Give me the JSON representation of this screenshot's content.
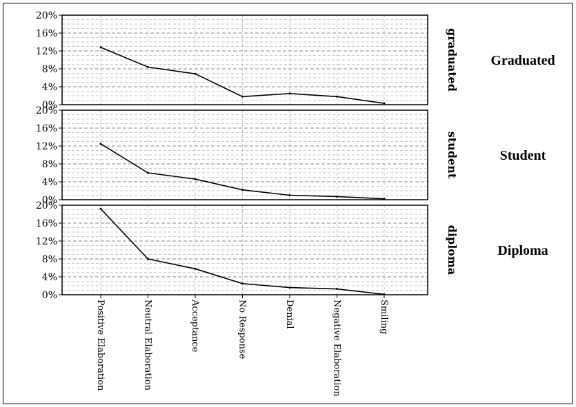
{
  "chart_data": {
    "type": "line",
    "categories": [
      "Positive Elaboration",
      "Neutral Elaboration",
      "Acceptance",
      "No Response",
      "Denial",
      "Negative Elaboration",
      "Smiling"
    ],
    "y_ticks": [
      "0%",
      "4%",
      "8%",
      "12%",
      "16%",
      "20%"
    ],
    "ylim": [
      0,
      20
    ],
    "grid": true,
    "panels": [
      {
        "strip_label": "graduated",
        "side_label": "Graduated",
        "values": [
          12.8,
          8.4,
          6.9,
          1.8,
          2.5,
          1.8,
          0.3
        ]
      },
      {
        "strip_label": "student",
        "side_label": "Student",
        "values": [
          12.5,
          6.0,
          4.6,
          2.2,
          1.0,
          0.7,
          0.2
        ]
      },
      {
        "strip_label": "diploma",
        "side_label": "Diploma",
        "values": [
          19.2,
          8.0,
          5.8,
          2.5,
          1.6,
          1.3,
          0.1
        ]
      }
    ],
    "line_color": "#000000",
    "grid_color": "#b8b8b8"
  }
}
